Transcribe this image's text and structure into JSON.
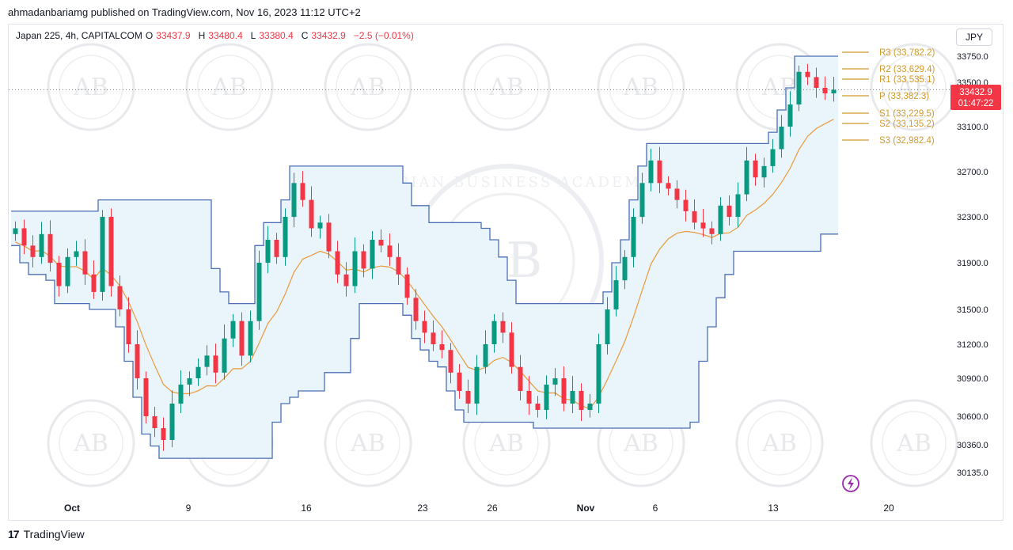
{
  "header": {
    "published_by": "ahmadanbariamg published on TradingView.com, Nov 16, 2023 11:12 UTC+2"
  },
  "legend": {
    "symbol": "Japan 225, 4h, CAPITALCOM",
    "o_label": "O",
    "o_value": "33437.9",
    "h_label": "H",
    "h_value": "33480.4",
    "l_label": "L",
    "l_value": "33380.4",
    "c_label": "C",
    "c_value": "33432.9",
    "change": "−2.5 (−0.01%)"
  },
  "currency_button": "JPY",
  "price_tag": {
    "price": "33432.9",
    "countdown": "01:47:22",
    "value": 33432.9
  },
  "footer": {
    "brand": "TradingView",
    "logo_glyph": "17"
  },
  "watermark": {
    "monogram": "AB",
    "ring_text": "ARABIAN BUSINESS ACADEMY"
  },
  "colors": {
    "up": "#089981",
    "down": "#f23645",
    "channel_line": "#4a6fb5",
    "channel_fill": "#eaf4fb",
    "mid_line": "#e89a3c",
    "pivot": "#d19a2a",
    "price_tag_bg": "#f23645",
    "badge": "#9c27b0"
  },
  "chart_data": {
    "type": "candlestick",
    "y_ticks": [
      "33750.0",
      "33500.0",
      "33100.0",
      "32700.0",
      "32300.0",
      "31900.0",
      "31500.0",
      "31200.0",
      "30900.0",
      "30600.0",
      "30360.0",
      "30135.0"
    ],
    "x_ticks": [
      "Oct",
      "9",
      "16",
      "23",
      "26",
      "Nov",
      "6",
      "13",
      "20"
    ],
    "pivots": [
      {
        "label": "R3 (33,782.2)",
        "value": 33782.2
      },
      {
        "label": "R2 (33,629.4)",
        "value": 33629.4
      },
      {
        "label": "R1 (33,535.1)",
        "value": 33535.1
      },
      {
        "label": "P (33,382.3)",
        "value": 33382.3
      },
      {
        "label": "S1 (33,229.5)",
        "value": 33229.5
      },
      {
        "label": "S2 (33,135.2)",
        "value": 33135.2
      },
      {
        "label": "S3 (32,982.4)",
        "value": 32982.4
      }
    ],
    "close_path": [
      32200,
      32050,
      31950,
      32150,
      31900,
      31700,
      31950,
      32000,
      31800,
      31650,
      32300,
      31700,
      31500,
      31200,
      30900,
      30600,
      30500,
      30400,
      30700,
      30850,
      30900,
      31000,
      31100,
      30950,
      31250,
      31400,
      31100,
      31400,
      31900,
      32100,
      31950,
      32300,
      32600,
      32450,
      32200,
      32250,
      32000,
      31800,
      31700,
      32000,
      31850,
      32100,
      32050,
      31950,
      31800,
      31600,
      31400,
      31300,
      31200,
      31150,
      30950,
      30800,
      30700,
      31000,
      31200,
      31400,
      31300,
      31000,
      30800,
      30700,
      30650,
      30850,
      30900,
      30700,
      30800,
      30650,
      30700,
      31200,
      31500,
      31750,
      31950,
      32300,
      32600,
      32800,
      32600,
      32550,
      32450,
      32350,
      32250,
      32200,
      32150,
      32400,
      32300,
      32500,
      32800,
      32650,
      32750,
      32900,
      33100,
      33300,
      33600,
      33550,
      33450,
      33400,
      33433
    ]
  }
}
